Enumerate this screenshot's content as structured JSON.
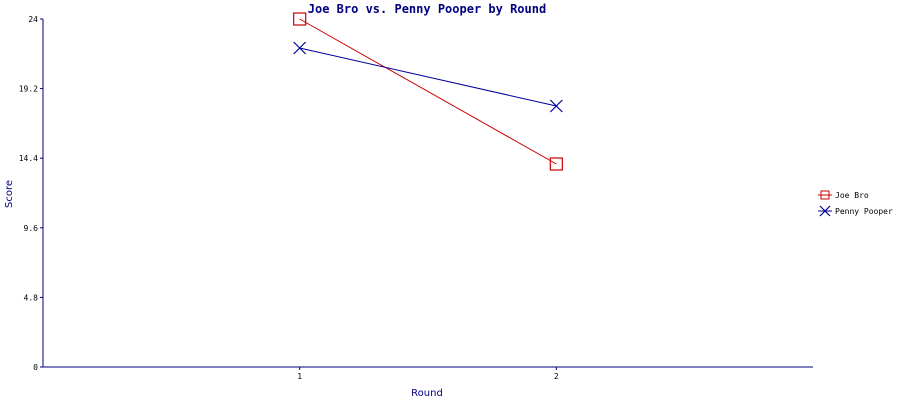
{
  "chart_data": {
    "type": "line",
    "title": "Joe Bro vs. Penny Pooper by Round",
    "xlabel": "Round",
    "ylabel": "Score",
    "x": [
      1,
      2
    ],
    "xlim": [
      0,
      3
    ],
    "ylim": [
      0,
      24
    ],
    "yticks": [
      "0",
      "4.8",
      "9.6",
      "14.4",
      "19.2",
      "24"
    ],
    "xticks": [
      "1",
      "2"
    ],
    "grid": false,
    "legend_position": "right",
    "series": [
      {
        "name": "Joe Bro",
        "values": [
          24,
          14
        ],
        "color": "#cc0000",
        "marker": "square"
      },
      {
        "name": "Penny Pooper",
        "values": [
          22,
          18
        ],
        "color": "#000099",
        "marker": "x"
      }
    ]
  },
  "colors": {
    "axis": "#000080",
    "title": "#000080"
  }
}
